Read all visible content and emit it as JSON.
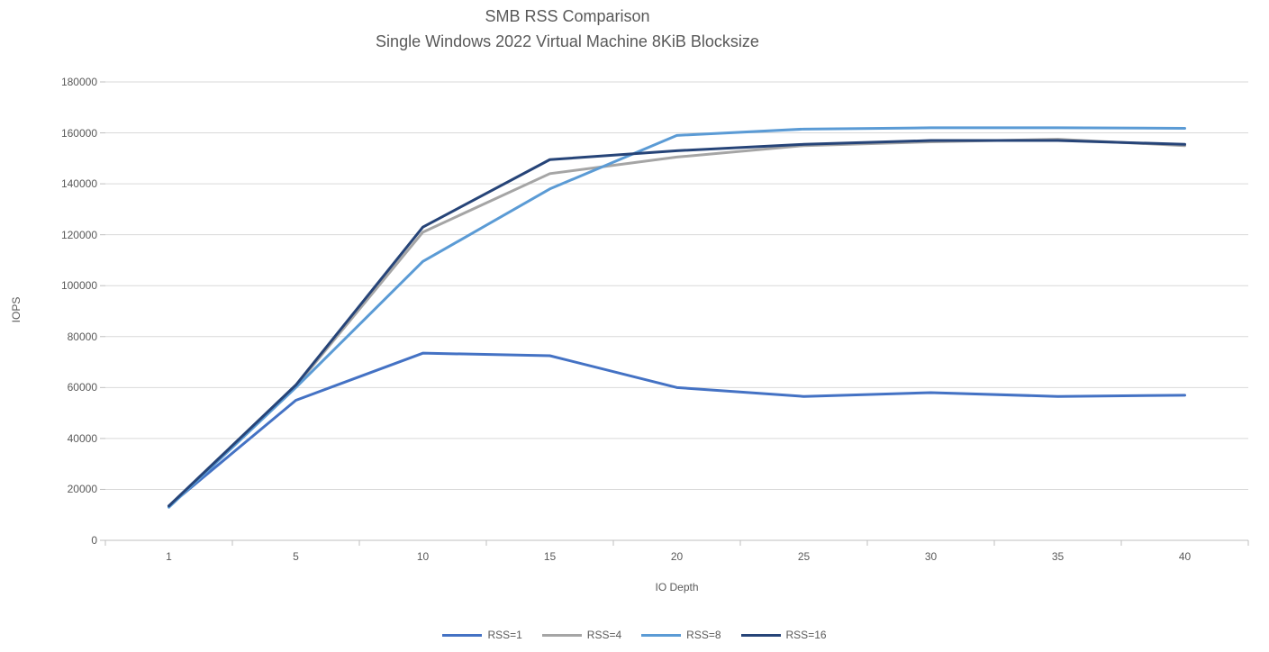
{
  "chart_data": {
    "type": "line",
    "title": "SMB RSS Comparison",
    "subtitle": "Single Windows 2022 Virtual Machine 8KiB Blocksize",
    "xlabel": "IO Depth",
    "ylabel": "IOPS",
    "categories": [
      1,
      5,
      10,
      15,
      20,
      25,
      30,
      35,
      40
    ],
    "ylim": [
      0,
      180000
    ],
    "ytick_step": 20000,
    "grid": "horizontal",
    "legend_position": "bottom",
    "series": [
      {
        "name": "RSS=1",
        "color": "#4472C4",
        "values": [
          13500,
          55000,
          73500,
          72500,
          60000,
          56500,
          58000,
          56500,
          57000
        ]
      },
      {
        "name": "RSS=4",
        "color": "#A5A5A5",
        "values": [
          13500,
          60500,
          121000,
          144000,
          150500,
          155000,
          156500,
          157500,
          155000
        ]
      },
      {
        "name": "RSS=8",
        "color": "#5B9BD5",
        "values": [
          13000,
          60000,
          109500,
          138000,
          159000,
          161500,
          162000,
          162000,
          161800
        ]
      },
      {
        "name": "RSS=16",
        "color": "#264478",
        "values": [
          13500,
          61000,
          123000,
          149500,
          153000,
          155500,
          157000,
          157000,
          155500
        ]
      }
    ],
    "colors": {
      "gridline": "#d9d9d9",
      "axis": "#bfbfbf",
      "text": "#595959"
    }
  }
}
